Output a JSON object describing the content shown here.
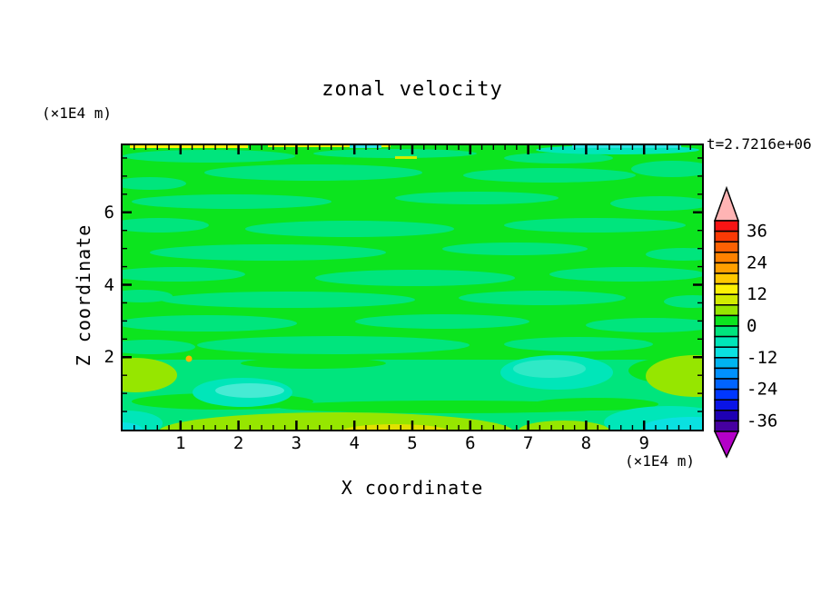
{
  "chart_data": {
    "type": "filled_contour",
    "title": "zonal velocity",
    "xlabel": "X coordinate",
    "ylabel": "Z coordinate",
    "x_unit": "(×1E4 m)",
    "y_unit": "(×1E4 m)",
    "time_annotation": "t=2.7216e+06",
    "xlim": [
      0,
      10
    ],
    "ylim": [
      0,
      7.85
    ],
    "x_ticks": [
      1,
      2,
      3,
      4,
      5,
      6,
      7,
      8,
      9
    ],
    "y_ticks": [
      2,
      4,
      6
    ],
    "x_minor_step": 0.2,
    "y_minor_step": 0.5,
    "grid": false,
    "legend_position": "right-colorbar",
    "colorbar": {
      "value_max": 40,
      "value_min": -40,
      "contour_interval": 4,
      "tick_labels": [
        36,
        24,
        12,
        0,
        -12,
        -24,
        -36
      ],
      "segment_colors_top_to_bottom": [
        "#f81414",
        "#fb3a05",
        "#fd6103",
        "#ff8200",
        "#ffa000",
        "#ffc800",
        "#fdf105",
        "#d2eb00",
        "#96e600",
        "#0ce41e",
        "#00e57d",
        "#00e6b9",
        "#0ae1e1",
        "#00b4f0",
        "#0091ff",
        "#0064ff",
        "#0037ff",
        "#0a14e6",
        "#1e00b4",
        "#4600a0"
      ],
      "above_range_color": "#ffb4b4",
      "below_range_color": "#b400c8"
    },
    "field_summary": "Horizontally banded zonal-velocity field: interior dominated by values in -4..+4 (green and spring-green streaks); cyan/turquoise minima (-12..-4) in patches near the bottom boundary and bottom corners; yellow-green to yellow maxima (+4..+16) along the bottom edge, lower-left and lower-right edges; thin yellow stripe at the very top edge."
  },
  "plot": {
    "bg": "#0ce41e",
    "patches": [
      {
        "t": "e",
        "c": [
          95,
          12
        ],
        "r": [
          95,
          7
        ],
        "f": "#00e57d"
      },
      {
        "t": "e",
        "c": [
          300,
          9
        ],
        "r": [
          90,
          5
        ],
        "f": "#00e57d"
      },
      {
        "t": "e",
        "c": [
          480,
          14
        ],
        "r": [
          60,
          6
        ],
        "f": "#00e57d"
      },
      {
        "t": "e",
        "c": [
          210,
          30
        ],
        "r": [
          120,
          9
        ],
        "f": "#00e57d"
      },
      {
        "t": "e",
        "c": [
          470,
          33
        ],
        "r": [
          95,
          8
        ],
        "f": "#00e57d"
      },
      {
        "t": "e",
        "c": [
          30,
          42
        ],
        "r": [
          40,
          7
        ],
        "f": "#00e57d"
      },
      {
        "t": "e",
        "c": [
          605,
          26
        ],
        "r": [
          45,
          9
        ],
        "f": "#00e57d"
      },
      {
        "t": "e",
        "c": [
          120,
          62
        ],
        "r": [
          110,
          8
        ],
        "f": "#00e57d"
      },
      {
        "t": "e",
        "c": [
          390,
          58
        ],
        "r": [
          90,
          7
        ],
        "f": "#00e57d"
      },
      {
        "t": "e",
        "c": [
          592,
          64
        ],
        "r": [
          55,
          8
        ],
        "f": "#00e57d"
      },
      {
        "t": "e",
        "c": [
          40,
          88
        ],
        "r": [
          55,
          8
        ],
        "f": "#00e57d"
      },
      {
        "t": "e",
        "c": [
          250,
          92
        ],
        "r": [
          115,
          9
        ],
        "f": "#00e57d"
      },
      {
        "t": "e",
        "c": [
          520,
          88
        ],
        "r": [
          100,
          8
        ],
        "f": "#00e57d"
      },
      {
        "t": "e",
        "c": [
          160,
          118
        ],
        "r": [
          130,
          9
        ],
        "f": "#00e57d"
      },
      {
        "t": "e",
        "c": [
          432,
          114
        ],
        "r": [
          80,
          7
        ],
        "f": "#00e57d"
      },
      {
        "t": "e",
        "c": [
          618,
          120
        ],
        "r": [
          42,
          7
        ],
        "f": "#00e57d"
      },
      {
        "t": "e",
        "c": [
          60,
          142
        ],
        "r": [
          75,
          8
        ],
        "f": "#00e57d"
      },
      {
        "t": "e",
        "c": [
          322,
          146
        ],
        "r": [
          110,
          9
        ],
        "f": "#00e57d"
      },
      {
        "t": "e",
        "c": [
          556,
          142
        ],
        "r": [
          86,
          8
        ],
        "f": "#00e57d"
      },
      {
        "t": "e",
        "c": [
          182,
          170
        ],
        "r": [
          140,
          9
        ],
        "f": "#00e57d"
      },
      {
        "t": "e",
        "c": [
          462,
          168
        ],
        "r": [
          92,
          8
        ],
        "f": "#00e57d"
      },
      {
        "t": "e",
        "c": [
          20,
          166
        ],
        "r": [
          35,
          7
        ],
        "f": "#00e57d"
      },
      {
        "t": "e",
        "c": [
          628,
          172
        ],
        "r": [
          32,
          7
        ],
        "f": "#00e57d"
      },
      {
        "t": "e",
        "c": [
          92,
          196
        ],
        "r": [
          100,
          9
        ],
        "f": "#00e57d"
      },
      {
        "t": "e",
        "c": [
          352,
          194
        ],
        "r": [
          96,
          8
        ],
        "f": "#00e57d"
      },
      {
        "t": "e",
        "c": [
          582,
          198
        ],
        "r": [
          72,
          8
        ],
        "f": "#00e57d"
      },
      {
        "t": "e",
        "c": [
          232,
          220
        ],
        "r": [
          150,
          10
        ],
        "f": "#00e57d"
      },
      {
        "t": "e",
        "c": [
          502,
          219
        ],
        "r": [
          82,
          8
        ],
        "f": "#00e57d"
      },
      {
        "t": "e",
        "c": [
          30,
          222
        ],
        "r": [
          50,
          8
        ],
        "f": "#00e57d"
      },
      {
        "t": "r",
        "xywh": [
          0,
          236,
          638,
          77
        ],
        "f": "#00e57d"
      },
      {
        "t": "e",
        "c": [
          110,
          282
        ],
        "r": [
          100,
          9
        ],
        "f": "#0ce41e"
      },
      {
        "t": "e",
        "c": [
          360,
          288
        ],
        "r": [
          190,
          7
        ],
        "f": "#0ce41e"
      },
      {
        "t": "e",
        "c": [
          612,
          248
        ],
        "r": [
          55,
          15
        ],
        "f": "#0ce41e"
      },
      {
        "t": "e",
        "c": [
          210,
          240
        ],
        "r": [
          80,
          6
        ],
        "f": "#0ce41e"
      },
      {
        "t": "e",
        "c": [
          520,
          285
        ],
        "r": [
          70,
          7
        ],
        "f": "#0ce41e"
      },
      {
        "t": "e",
        "c": [
          132,
          272
        ],
        "r": [
          55,
          16
        ],
        "f": "#00e6b9"
      },
      {
        "t": "e",
        "c": [
          140,
          270
        ],
        "r": [
          38,
          8
        ],
        "f": "#46ebd4"
      },
      {
        "t": "e",
        "c": [
          478,
          250
        ],
        "r": [
          62,
          19
        ],
        "f": "#00e6b9"
      },
      {
        "t": "e",
        "c": [
          470,
          246
        ],
        "r": [
          40,
          10
        ],
        "f": "#2fe9c6"
      },
      {
        "t": "e",
        "c": [
          630,
          254
        ],
        "r": [
          54,
          23
        ],
        "f": "#96e600"
      },
      {
        "t": "e",
        "c": [
          14,
          253
        ],
        "r": [
          46,
          19
        ],
        "f": "#96e600"
      },
      {
        "t": "e",
        "c": [
          235,
          315
        ],
        "r": [
          195,
          21
        ],
        "f": "#96e600"
      },
      {
        "t": "e",
        "c": [
          300,
          317
        ],
        "r": [
          64,
          10
        ],
        "f": "#e1e100"
      },
      {
        "t": "e",
        "c": [
          486,
          314
        ],
        "r": [
          50,
          11
        ],
        "f": "#96e600"
      },
      {
        "t": "e",
        "c": [
          602,
          305
        ],
        "r": [
          72,
          18
        ],
        "f": "#00e6b9"
      },
      {
        "t": "e",
        "c": [
          628,
          311
        ],
        "r": [
          56,
          12
        ],
        "f": "#0ae1e1"
      },
      {
        "t": "e",
        "c": [
          4,
          306
        ],
        "r": [
          40,
          14
        ],
        "f": "#00e6b9"
      },
      {
        "t": "e",
        "c": [
          -2,
          313
        ],
        "r": [
          24,
          8
        ],
        "f": "#0ae1e1"
      },
      {
        "t": "c",
        "c": [
          73,
          235
        ],
        "r": 3.5,
        "f": "#ffb400"
      },
      {
        "t": "r",
        "xywh": [
          8,
          0,
          130,
          3
        ],
        "f": "#fdf105"
      },
      {
        "t": "r",
        "xywh": [
          160,
          0,
          135,
          2
        ],
        "f": "#fdf105"
      },
      {
        "t": "r",
        "xywh": [
          300,
          12,
          24,
          3
        ],
        "f": "#d2eb00"
      },
      {
        "t": "e",
        "c": [
          545,
          5
        ],
        "r": [
          90,
          5
        ],
        "f": "#00e6b9"
      },
      {
        "t": "r",
        "xywh": [
          495,
          0,
          120,
          3
        ],
        "f": "#2ae1e1"
      },
      {
        "t": "r",
        "xywh": [
          250,
          0,
          35,
          3
        ],
        "f": "#2ae1e1"
      }
    ]
  }
}
